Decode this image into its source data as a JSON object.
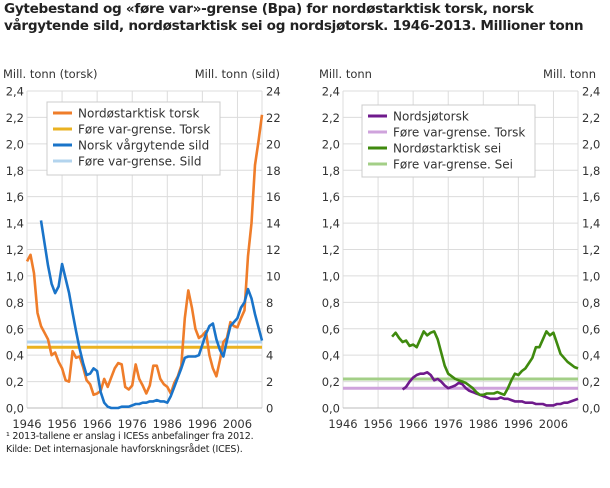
{
  "title": "Gytebestand og «føre var»-grense (Bpa) for nordøstarktisk torsk, norsk vårgytende sild, nordøstarktisk sei og nordsjøtorsk. 1946-2013. Millioner tonn",
  "footnotes": [
    "¹ 2013-tallene er anslag i ICESs anbefalinger fra 2012.",
    "Kilde: Det internasjonale havforskningsrådet (ICES)."
  ],
  "chart_data": [
    {
      "type": "line",
      "ylabel_left": "Mill. tonn (torsk)",
      "ylabel_right": "Mill. tonn (sild)",
      "xlim": [
        1946,
        2013
      ],
      "xticks": [
        "1946",
        "1956",
        "1966",
        "1976",
        "1986",
        "1996",
        "2006"
      ],
      "ylim_left": [
        0,
        2.4
      ],
      "yticks_left": [
        "0,0",
        "0,2",
        "0,4",
        "0,6",
        "0,8",
        "1,0",
        "1,2",
        "1,4",
        "1,6",
        "1,8",
        "2,0",
        "2,2",
        "2,4"
      ],
      "ylim_right": [
        0,
        24
      ],
      "yticks_right": [
        "0",
        "2",
        "4",
        "6",
        "8",
        "10",
        "12",
        "14",
        "16",
        "18",
        "20",
        "22",
        "24"
      ],
      "grid": true,
      "legend_position": "top-left",
      "series": [
        {
          "name": "Nordøstarktisk torsk",
          "color": "#ef7d2a",
          "axis": "left",
          "start_year": 1946,
          "values": [
            1.11,
            1.16,
            1.02,
            0.72,
            0.62,
            0.57,
            0.52,
            0.4,
            0.42,
            0.35,
            0.3,
            0.21,
            0.2,
            0.43,
            0.38,
            0.39,
            0.31,
            0.21,
            0.18,
            0.1,
            0.11,
            0.13,
            0.22,
            0.16,
            0.23,
            0.3,
            0.34,
            0.33,
            0.16,
            0.14,
            0.17,
            0.33,
            0.22,
            0.17,
            0.11,
            0.17,
            0.32,
            0.32,
            0.22,
            0.18,
            0.16,
            0.11,
            0.19,
            0.24,
            0.32,
            0.68,
            0.89,
            0.76,
            0.6,
            0.53,
            0.55,
            0.58,
            0.4,
            0.3,
            0.24,
            0.36,
            0.5,
            0.53,
            0.65,
            0.62,
            0.61,
            0.68,
            0.74,
            1.15,
            1.4,
            1.84,
            2.02,
            2.22
          ]
        },
        {
          "name": "Føre var-grense. Torsk",
          "color": "#eab221",
          "axis": "left",
          "start_year": 1946,
          "constant": 0.46
        },
        {
          "name": "Norsk vårgytende sild",
          "color": "#1a74c9",
          "axis": "right",
          "start_year": 1950,
          "values": [
            14.2,
            12.5,
            10.8,
            9.4,
            8.7,
            9.2,
            10.9,
            9.8,
            8.7,
            7.2,
            5.8,
            4.5,
            3.4,
            2.5,
            2.6,
            3.0,
            2.8,
            1.2,
            0.4,
            0.1,
            0.0,
            0.0,
            0.0,
            0.1,
            0.1,
            0.1,
            0.2,
            0.3,
            0.3,
            0.4,
            0.4,
            0.5,
            0.5,
            0.6,
            0.5,
            0.5,
            0.4,
            0.9,
            1.6,
            2.3,
            3.0,
            3.8,
            3.9,
            3.9,
            3.9,
            4.0,
            4.8,
            5.6,
            6.2,
            6.4,
            5.2,
            4.4,
            3.9,
            5.1,
            6.2,
            6.5,
            6.8,
            7.6,
            8.0,
            9.0,
            8.3,
            7.1,
            6.1,
            5.1
          ]
        },
        {
          "name": "Føre var-grense. Sild",
          "color": "#b3d4ee",
          "axis": "right",
          "start_year": 1946,
          "constant": 5.0
        }
      ]
    },
    {
      "type": "line",
      "ylabel_left": "Mill. tonn",
      "ylabel_right": "Mill. tonn",
      "xlim": [
        1946,
        2013
      ],
      "xticks": [
        "1946",
        "1956",
        "1966",
        "1976",
        "1986",
        "1996",
        "2006"
      ],
      "ylim_left": [
        0,
        2.4
      ],
      "yticks_left": [
        "0,0",
        "0,2",
        "0,4",
        "0,6",
        "0,8",
        "1,0",
        "1,2",
        "1,4",
        "1,6",
        "1,8",
        "2,0",
        "2,2",
        "2,4"
      ],
      "ylim_right": [
        0,
        2.4
      ],
      "yticks_right": [
        "0,0",
        "0,2",
        "0,4",
        "0,6",
        "0,8",
        "1,0",
        "1,2",
        "1,4",
        "1,6",
        "1,8",
        "2,0",
        "2,2",
        "2,4"
      ],
      "grid": true,
      "legend_position": "top-left",
      "series": [
        {
          "name": "Nordsjøtorsk",
          "color": "#6f1a8c",
          "axis": "left",
          "start_year": 1963,
          "values": [
            0.14,
            0.16,
            0.2,
            0.23,
            0.25,
            0.26,
            0.26,
            0.27,
            0.25,
            0.21,
            0.22,
            0.2,
            0.17,
            0.15,
            0.16,
            0.17,
            0.19,
            0.18,
            0.15,
            0.13,
            0.12,
            0.11,
            0.1,
            0.09,
            0.08,
            0.07,
            0.07,
            0.07,
            0.08,
            0.07,
            0.07,
            0.06,
            0.05,
            0.05,
            0.05,
            0.04,
            0.04,
            0.04,
            0.03,
            0.03,
            0.03,
            0.02,
            0.02,
            0.02,
            0.03,
            0.03,
            0.04,
            0.04,
            0.05,
            0.06,
            0.07
          ]
        },
        {
          "name": "Føre var-grense. Torsk",
          "color": "#cfa3dc",
          "axis": "left",
          "start_year": 1946,
          "constant": 0.15
        },
        {
          "name": "Nordøstarktisk sei",
          "color": "#3f8a0e",
          "axis": "left",
          "start_year": 1960,
          "values": [
            0.54,
            0.57,
            0.53,
            0.5,
            0.51,
            0.47,
            0.48,
            0.46,
            0.52,
            0.58,
            0.55,
            0.57,
            0.58,
            0.52,
            0.42,
            0.32,
            0.26,
            0.24,
            0.22,
            0.21,
            0.2,
            0.19,
            0.17,
            0.15,
            0.12,
            0.1,
            0.1,
            0.11,
            0.11,
            0.11,
            0.12,
            0.11,
            0.1,
            0.15,
            0.21,
            0.26,
            0.25,
            0.28,
            0.3,
            0.34,
            0.38,
            0.46,
            0.46,
            0.52,
            0.58,
            0.55,
            0.57,
            0.49,
            0.41,
            0.38,
            0.35,
            0.33,
            0.31,
            0.3
          ]
        },
        {
          "name": "Føre var-grense. Sei",
          "color": "#a3cf87",
          "axis": "left",
          "start_year": 1946,
          "constant": 0.22
        }
      ]
    }
  ]
}
